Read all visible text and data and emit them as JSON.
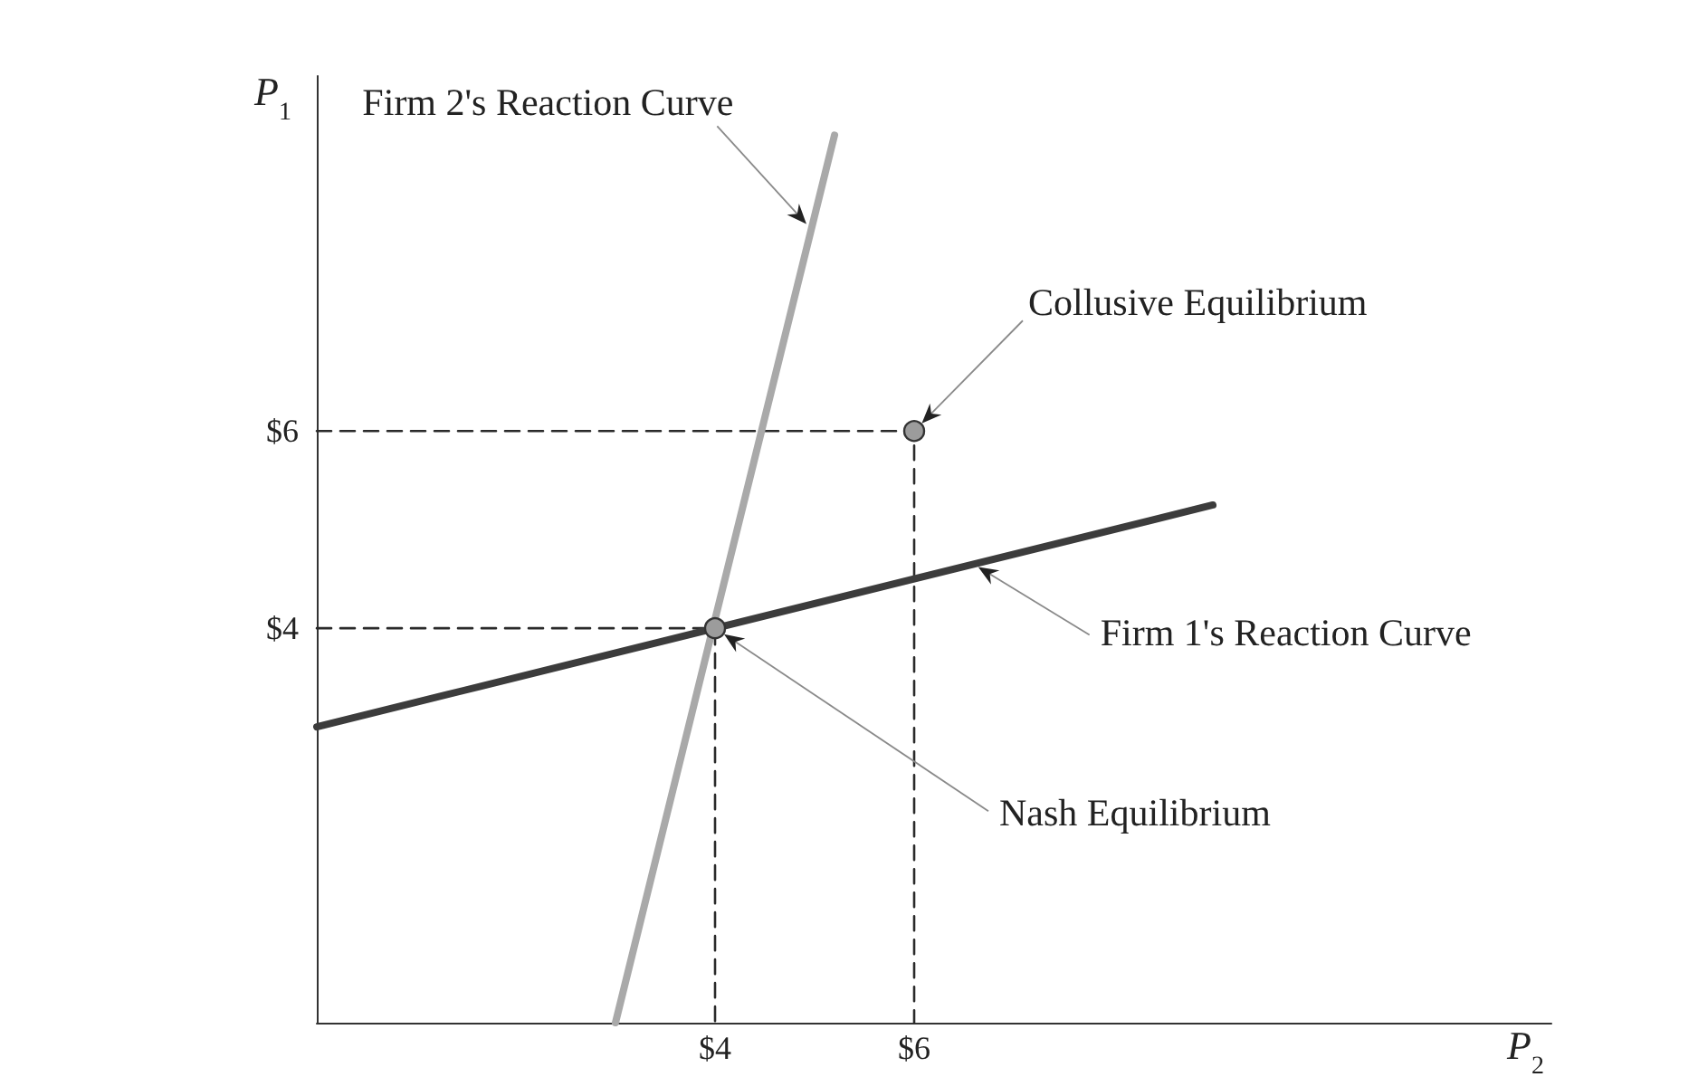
{
  "chart_data": {
    "type": "line",
    "xlabel": "P$_{2}$",
    "ylabel": "P$_{1}$",
    "xlim": [
      0,
      12.4
    ],
    "ylim": [
      0,
      9.6
    ],
    "xticks": [
      {
        "value": 4,
        "label": "$4"
      },
      {
        "value": 6,
        "label": "$6"
      }
    ],
    "yticks": [
      {
        "value": 4,
        "label": "$4"
      },
      {
        "value": 6,
        "label": "$6"
      }
    ],
    "grid": false,
    "legend": false,
    "marker": "none",
    "series": [
      {
        "name": "Firm 1's Reaction Curve",
        "color": "#3c3c3c",
        "x": [
          0,
          9
        ],
        "values": [
          3,
          5.25
        ]
      },
      {
        "name": "Firm 2's Reaction Curve",
        "color": "#a9a9a9",
        "x": [
          3,
          5.2
        ],
        "values": [
          0,
          9
        ]
      },
      {
        "color": "#2a2a2a",
        "line_style": "dashed",
        "x": [
          0,
          4,
          4
        ],
        "values": [
          4,
          4,
          0
        ]
      },
      {
        "color": "#2a2a2a",
        "line_style": "dashed",
        "x": [
          0,
          6,
          6
        ],
        "values": [
          6,
          6,
          0
        ]
      },
      {
        "name": "Nash Equilibrium",
        "type": "scatter",
        "color": "#9c9c9c",
        "marker": "circle",
        "x": [
          4
        ],
        "values": [
          4
        ]
      },
      {
        "name": "Collusive Equilibrium",
        "type": "scatter",
        "color": "#9c9c9c",
        "marker": "circle",
        "x": [
          6
        ],
        "values": [
          6
        ]
      }
    ]
  }
}
